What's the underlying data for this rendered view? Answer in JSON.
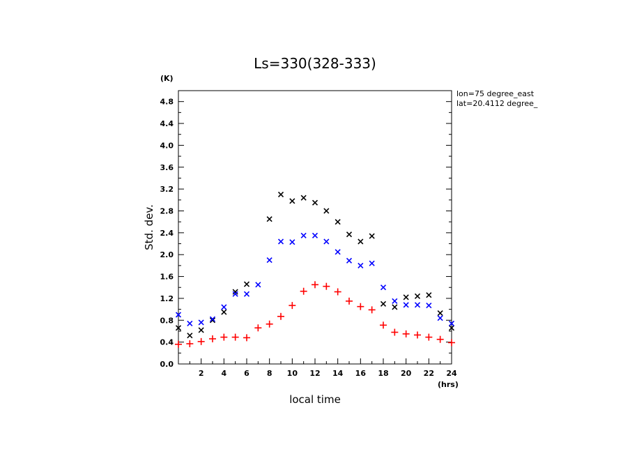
{
  "chart_data": {
    "type": "scatter",
    "title": "Ls=330(328-333)",
    "xlabel": "local time",
    "ylabel": "Std. dev.",
    "x_unit": "(hrs)",
    "y_unit": "(K)",
    "xlim": [
      0,
      24
    ],
    "ylim": [
      0,
      5.0
    ],
    "x_ticks": [
      2,
      4,
      6,
      8,
      10,
      12,
      14,
      16,
      18,
      20,
      22,
      24
    ],
    "x_tick_labels": [
      "2",
      "4",
      "6",
      "8",
      "10",
      "12",
      "14",
      "16",
      "18",
      "20",
      "22",
      "24"
    ],
    "y_ticks": [
      0,
      0.4,
      0.8,
      1.2,
      1.6,
      2.0,
      2.4,
      2.8,
      3.2,
      3.6,
      4.0,
      4.4,
      4.8
    ],
    "y_tick_labels": [
      "0.0",
      "0.4",
      "0.8",
      "1.2",
      "1.6",
      "2.0",
      "2.4",
      "2.8",
      "3.2",
      "3.6",
      "4.0",
      "4.4",
      "4.8"
    ],
    "annotations": [
      "lon=75 degree_east",
      "lat=20.4112 degree_"
    ],
    "grid": false,
    "x": [
      0,
      1,
      2,
      3,
      4,
      5,
      6,
      7,
      8,
      9,
      10,
      11,
      12,
      13,
      14,
      15,
      16,
      17,
      18,
      19,
      20,
      21,
      22,
      23,
      24
    ],
    "series": [
      {
        "marker": "x",
        "color": "#000000",
        "values": [
          0.66,
          0.52,
          0.62,
          0.8,
          0.95,
          1.32,
          1.46,
          null,
          2.65,
          3.1,
          2.98,
          3.04,
          2.95,
          2.8,
          2.6,
          2.37,
          2.24,
          2.34,
          1.1,
          1.04,
          1.22,
          1.24,
          1.26,
          0.93,
          0.66
        ]
      },
      {
        "marker": "x",
        "color": "#0000ff",
        "values": [
          0.9,
          0.74,
          0.76,
          0.82,
          1.04,
          1.28,
          1.28,
          1.45,
          1.9,
          2.24,
          2.23,
          2.35,
          2.35,
          2.24,
          2.05,
          1.89,
          1.8,
          1.84,
          1.4,
          1.15,
          1.08,
          1.08,
          1.07,
          0.84,
          0.74
        ]
      },
      {
        "marker": "+",
        "color": "#ff0000",
        "values": [
          0.36,
          0.37,
          0.41,
          0.46,
          0.49,
          0.49,
          0.48,
          0.66,
          0.73,
          0.87,
          1.07,
          1.33,
          1.45,
          1.42,
          1.32,
          1.15,
          1.05,
          0.99,
          0.71,
          0.58,
          0.55,
          0.53,
          0.49,
          0.45,
          0.39
        ]
      }
    ]
  }
}
